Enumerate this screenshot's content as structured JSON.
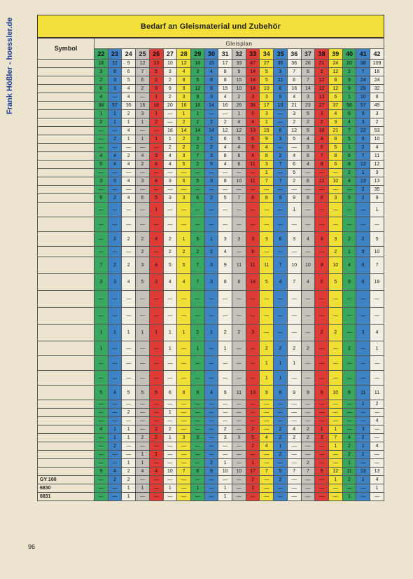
{
  "watermark": "Frank Hößler - hoessler.de",
  "title": "Bedarf an Gleismaterial und Zubehör",
  "symbol_header": "Symbol",
  "plan_header": "Gleisplan",
  "columns": [
    "22",
    "23",
    "24",
    "25",
    "26",
    "27",
    "28",
    "29",
    "30",
    "31",
    "32",
    "33",
    "34",
    "35",
    "36",
    "37",
    "38",
    "39",
    "40",
    "41",
    "42"
  ],
  "column_colors": [
    "g",
    "b",
    "w",
    "gr",
    "r",
    "w",
    "y",
    "g",
    "b",
    "w",
    "gr",
    "r",
    "y",
    "b",
    "w",
    "gr",
    "r",
    "y",
    "g",
    "b",
    "w"
  ],
  "rows": [
    {
      "symbol": "",
      "cells": [
        "16",
        "12",
        "9",
        "12",
        "13",
        "10",
        "12",
        "18",
        "15",
        "17",
        "33",
        "47",
        "27",
        "35",
        "36",
        "26",
        "21",
        "24",
        "20",
        "38",
        "109"
      ]
    },
    {
      "symbol": "",
      "cells": [
        "3",
        "8",
        "6",
        "7",
        "5",
        "3",
        "4",
        "3",
        "4",
        "8",
        "9",
        "14",
        "5",
        "3",
        "7",
        "6",
        "2",
        "12",
        "2",
        "7",
        "16"
      ]
    },
    {
      "symbol": "",
      "cells": [
        "2",
        "3",
        "5",
        "6",
        "2",
        "2",
        "8",
        "5",
        "8",
        "8",
        "15",
        "14",
        "5",
        "11",
        "8",
        "7",
        "12",
        "8",
        "9",
        "24",
        "24"
      ]
    },
    {
      "symbol": "",
      "cells": [
        "6",
        "3",
        "4",
        "2",
        "8",
        "9",
        "9",
        "12",
        "8",
        "15",
        "10",
        "14",
        "10",
        "6",
        "16",
        "14",
        "12",
        "12",
        "9",
        "29",
        "32"
      ]
    },
    {
      "symbol": "",
      "cells": [
        "4",
        "—",
        "4",
        "—",
        "1",
        "2",
        "3",
        "9",
        "3",
        "4",
        "2",
        "3",
        "3",
        "5",
        "4",
        "3",
        "13",
        "6",
        "1",
        "10",
        "8"
      ]
    },
    {
      "symbol": "",
      "cells": [
        "38",
        "57",
        "35",
        "16",
        "18",
        "20",
        "16",
        "16",
        "14",
        "16",
        "26",
        "36",
        "17",
        "10",
        "21",
        "23",
        "27",
        "37",
        "56",
        "57",
        "49"
      ]
    },
    {
      "symbol": "",
      "cells": [
        "1",
        "1",
        "2",
        "3",
        "1",
        "—",
        "1",
        "1",
        "—",
        "—",
        "1",
        "5",
        "3",
        "—",
        "3",
        "5",
        "3",
        "4",
        "6",
        "9",
        "3"
      ]
    },
    {
      "symbol": "",
      "cells": [
        "2",
        "1",
        "1",
        "1",
        "2",
        "—",
        "2",
        "2",
        "2",
        "2",
        "4",
        "4",
        "1",
        "—",
        "2",
        "2",
        "2",
        "3",
        "4",
        "3",
        "2"
      ]
    },
    {
      "symbol": "",
      "cells": [
        "—",
        "—",
        "4",
        "—",
        "—",
        "16",
        "14",
        "14",
        "14",
        "12",
        "12",
        "13",
        "15",
        "6",
        "12",
        "5",
        "16",
        "21",
        "7",
        "22",
        "53"
      ]
    },
    {
      "symbol": "",
      "cells": [
        "—",
        "2",
        "1",
        "1",
        "1",
        "1",
        "2",
        "3",
        "2",
        "6",
        "5",
        "6",
        "9",
        "3",
        "5",
        "4",
        "4",
        "8",
        "5",
        "6",
        "10"
      ]
    },
    {
      "symbol": "",
      "cells": [
        "—",
        "—",
        "—",
        "—",
        "—",
        "2",
        "2",
        "2",
        "2",
        "4",
        "4",
        "5",
        "4",
        "—",
        "—",
        "3",
        "5",
        "5",
        "1",
        "2",
        "4"
      ]
    },
    {
      "symbol": "",
      "cells": [
        "4",
        "4",
        "2",
        "4",
        "3",
        "4",
        "3",
        "7",
        "3",
        "8",
        "8",
        "4",
        "8",
        "2",
        "4",
        "6",
        "7",
        "8",
        "6",
        "7",
        "11"
      ]
    },
    {
      "symbol": "",
      "cells": [
        "5",
        "4",
        "4",
        "2",
        "4",
        "4",
        "5",
        "2",
        "5",
        "4",
        "6",
        "11",
        "3",
        "7",
        "6",
        "4",
        "8",
        "6",
        "8",
        "12",
        "12"
      ]
    },
    {
      "symbol": "",
      "cells": [
        "—",
        "—",
        "—",
        "—",
        "—",
        "—",
        "—",
        "—",
        "—",
        "—",
        "—",
        "—",
        "1",
        "—",
        "5",
        "—",
        "—",
        "—",
        "2",
        "1",
        "3"
      ]
    },
    {
      "symbol": "",
      "cells": [
        "3",
        "5",
        "4",
        "3",
        "4",
        "3",
        "6",
        "5",
        "3",
        "8",
        "10",
        "11",
        "7",
        "7",
        "2",
        "6",
        "11",
        "10",
        "4",
        "13",
        "13"
      ]
    },
    {
      "symbol": "",
      "cells": [
        "—",
        "—",
        "—",
        "—",
        "—",
        "—",
        "—",
        "—",
        "—",
        "—",
        "—",
        "—",
        "—",
        "—",
        "—",
        "—",
        "—",
        "—",
        "—",
        "2",
        "35"
      ]
    },
    {
      "symbol": "",
      "cells": [
        "6",
        "2",
        "4",
        "6",
        "5",
        "3",
        "3",
        "6",
        "2",
        "5",
        "7",
        "8",
        "8",
        "9",
        "9",
        "8",
        "6",
        "3",
        "5",
        "2",
        "9"
      ]
    },
    {
      "symbol": "",
      "cells": [
        "—",
        "—",
        "—",
        "—",
        "1",
        "—",
        "—",
        "—",
        "—",
        "—",
        "—",
        "—",
        "—",
        "—",
        "1",
        "—",
        "—",
        "—",
        "—",
        "—",
        "1"
      ]
    },
    {
      "symbol": "",
      "cells": [
        "—",
        "—",
        "—",
        "—",
        "—",
        "—",
        "—",
        "—",
        "—",
        "—",
        "—",
        "—",
        "—",
        "—",
        "—",
        "—",
        "—",
        "—",
        "—",
        "—",
        "—"
      ]
    },
    {
      "symbol": "",
      "cells": [
        "—",
        "2",
        "2",
        "2",
        "4",
        "2",
        "1",
        "5",
        "1",
        "3",
        "3",
        "3",
        "3",
        "6",
        "3",
        "4",
        "4",
        "3",
        "2",
        "2",
        "5"
      ]
    },
    {
      "symbol": "",
      "cells": [
        "—",
        "—",
        "—",
        "2",
        "—",
        "2",
        "2",
        "2",
        "2",
        "4",
        "—",
        "8",
        "—",
        "—",
        "—",
        "—",
        "—",
        "2",
        "1",
        "9",
        "10"
      ]
    },
    {
      "symbol": "",
      "cells": [
        "7",
        "2",
        "2",
        "3",
        "4",
        "5",
        "5",
        "7",
        "3",
        "9",
        "11",
        "11",
        "11",
        "7",
        "10",
        "10",
        "9",
        "10",
        "4",
        "8",
        "7"
      ]
    },
    {
      "symbol": "",
      "cells": [
        "3",
        "3",
        "4",
        "5",
        "3",
        "4",
        "4",
        "7",
        "3",
        "8",
        "8",
        "14",
        "5",
        "4",
        "7",
        "4",
        "5",
        "5",
        "9",
        "8",
        "18"
      ]
    },
    {
      "symbol": "",
      "cells": [
        "—",
        "—",
        "—",
        "—",
        "—",
        "—",
        "—",
        "—",
        "—",
        "—",
        "—",
        "—",
        "—",
        "—",
        "—",
        "—",
        "—",
        "—",
        "—",
        "—",
        "—"
      ]
    },
    {
      "symbol": "",
      "cells": [
        "—",
        "—",
        "—",
        "—",
        "—",
        "—",
        "—",
        "—",
        "—",
        "—",
        "—",
        "—",
        "—",
        "—",
        "—",
        "—",
        "—",
        "—",
        "—",
        "—",
        "—"
      ]
    },
    {
      "symbol": "",
      "cells": [
        "1",
        "1",
        "1",
        "1",
        "1",
        "1",
        "1",
        "2",
        "1",
        "2",
        "2",
        "3",
        "—",
        "—",
        "—",
        "—",
        "2",
        "2",
        "—",
        "3",
        "4"
      ]
    },
    {
      "symbol": "",
      "cells": [
        "1",
        "—",
        "—",
        "—",
        "—",
        "1",
        "—",
        "1",
        "—",
        "1",
        "—",
        "—",
        "2",
        "2",
        "2",
        "2",
        "—",
        "—",
        "2",
        "—",
        "1"
      ]
    },
    {
      "symbol": "",
      "cells": [
        "—",
        "—",
        "—",
        "—",
        "—",
        "—",
        "—",
        "—",
        "—",
        "—",
        "—",
        "—",
        "1",
        "1",
        "1",
        "—",
        "—",
        "—",
        "—",
        "—",
        "—"
      ]
    },
    {
      "symbol": "",
      "cells": [
        "—",
        "—",
        "—",
        "—",
        "—",
        "—",
        "—",
        "—",
        "—",
        "—",
        "—",
        "—",
        "1",
        "1",
        "—",
        "—",
        "—",
        "—",
        "—",
        "—",
        "—"
      ]
    },
    {
      "symbol": "",
      "cells": [
        "5",
        "4",
        "5",
        "5",
        "6",
        "6",
        "6",
        "9",
        "4",
        "9",
        "11",
        "13",
        "9",
        "8",
        "9",
        "9",
        "9",
        "10",
        "8",
        "11",
        "11"
      ]
    },
    {
      "symbol": "",
      "cells": [
        "—",
        "—",
        "—",
        "—",
        "—",
        "—",
        "—",
        "—",
        "—",
        "—",
        "—",
        "—",
        "—",
        "—",
        "—",
        "—",
        "—",
        "—",
        "—",
        "1",
        "2"
      ]
    },
    {
      "symbol": "",
      "cells": [
        "—",
        "—",
        "2",
        "—",
        "—",
        "1",
        "—",
        "—",
        "—",
        "—",
        "—",
        "—",
        "—",
        "—",
        "—",
        "—",
        "—",
        "—",
        "—",
        "—",
        "—"
      ]
    },
    {
      "symbol": "",
      "cells": [
        "—",
        "—",
        "—",
        "—",
        "—",
        "—",
        "—",
        "—",
        "—",
        "—",
        "—",
        "—",
        "—",
        "—",
        "—",
        "—",
        "—",
        "—",
        "—",
        "—",
        "4"
      ]
    },
    {
      "symbol": "",
      "cells": [
        "4",
        "1",
        "1",
        "—",
        "2",
        "2",
        "—",
        "—",
        "—",
        "2",
        "—",
        "2",
        "—",
        "2",
        "4",
        "2",
        "1",
        "1",
        "—",
        "3",
        "—"
      ]
    },
    {
      "symbol": "",
      "cells": [
        "—",
        "1",
        "1",
        "2",
        "2",
        "1",
        "3",
        "3",
        "—",
        "3",
        "3",
        "5",
        "4",
        "2",
        "2",
        "2",
        "3",
        "7",
        "4",
        "2",
        "—"
      ]
    },
    {
      "symbol": "",
      "cells": [
        "—",
        "2",
        "—",
        "—",
        "—",
        "—",
        "—",
        "—",
        "—",
        "—",
        "—",
        "2",
        "4",
        "1",
        "—",
        "—",
        "—",
        "1",
        "2",
        "1",
        "4"
      ]
    },
    {
      "symbol": "",
      "cells": [
        "—",
        "—",
        "—",
        "1",
        "1",
        "—",
        "—",
        "—",
        "—",
        "—",
        "—",
        "—",
        "—",
        "2",
        "—",
        "—",
        "—",
        "—",
        "2",
        "1",
        "—"
      ]
    },
    {
      "symbol": "",
      "cells": [
        "—",
        "—",
        "1",
        "1",
        "—",
        "—",
        "—",
        "—",
        "2",
        "1",
        "—",
        "1",
        "—",
        "—",
        "—",
        "2",
        "—",
        "—",
        "1",
        "—",
        "—"
      ]
    },
    {
      "symbol": "",
      "cells": [
        "9",
        "4",
        "2",
        "4",
        "4",
        "10",
        "7",
        "8",
        "8",
        "10",
        "10",
        "17",
        "7",
        "5",
        "7",
        "7",
        "9",
        "12",
        "11",
        "13",
        "13"
      ]
    },
    {
      "symbol": "GY 100",
      "cells": [
        "—",
        "2",
        "2",
        "—",
        "—",
        "—",
        "—",
        "—",
        "—",
        "—",
        "—",
        "2",
        "—",
        "2",
        "—",
        "—",
        "—",
        "1",
        "2",
        "1",
        "4"
      ]
    },
    {
      "symbol": "6830",
      "cells": [
        "—",
        "—",
        "1",
        "1",
        "—",
        "1",
        "—",
        "1",
        "—",
        "1",
        "—",
        "1",
        "—",
        "—",
        "—",
        "—",
        "—",
        "—",
        "—",
        "—",
        "1"
      ]
    },
    {
      "symbol": "6831",
      "cells": [
        "—",
        "—",
        "1",
        "—",
        "—",
        "—",
        "—",
        "—",
        "—",
        "1",
        "—",
        "—",
        "—",
        "—",
        "—",
        "—",
        "—",
        "—",
        "1",
        "—",
        "—"
      ]
    }
  ],
  "page_number": "96"
}
